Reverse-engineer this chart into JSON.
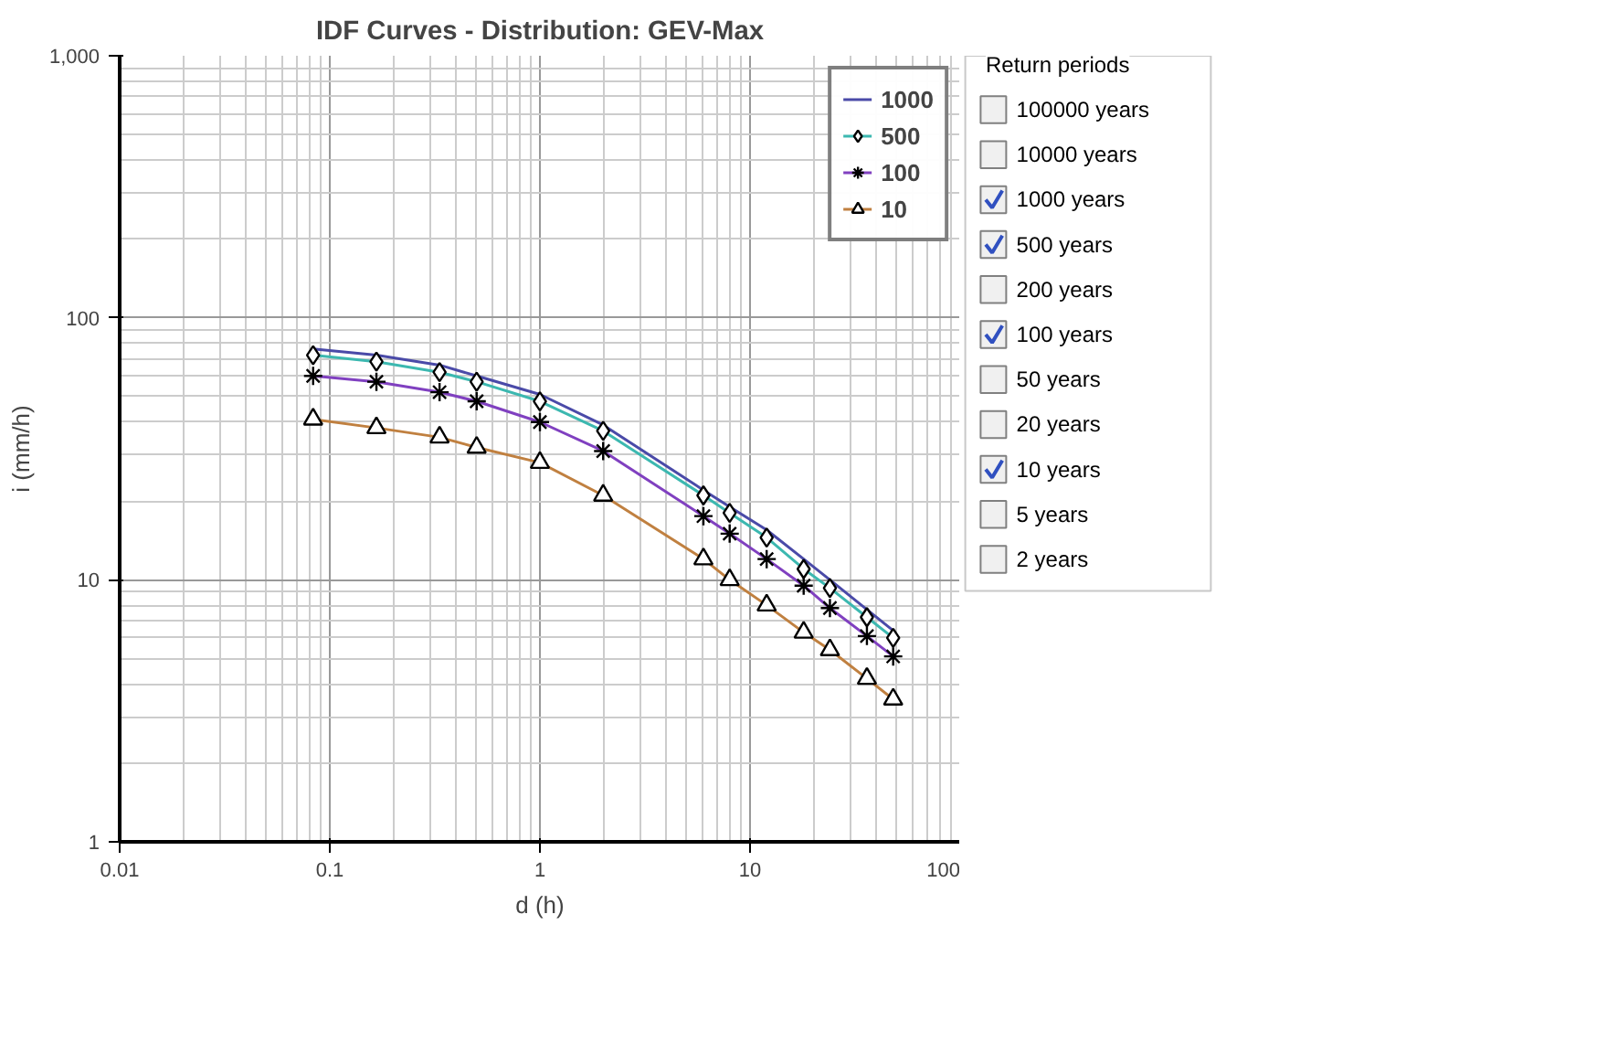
{
  "chart_data": [
    {
      "type": "line",
      "title": "IDF Curves - Distribution: GEV-Max",
      "xlabel": "d (h)",
      "ylabel": "i (mm/h)",
      "log": "xy",
      "grid": true,
      "legend": "top right",
      "xlim": [
        0.01,
        100
      ],
      "ylim": [
        1,
        1000
      ],
      "xticks": [
        0.01,
        0.1,
        1,
        10,
        100
      ],
      "yticks": [
        1,
        10,
        100,
        {
          "value": 1000,
          "label": "1,000"
        }
      ],
      "x": [
        0.0833,
        0.1667,
        0.333,
        0.5,
        1,
        2,
        6,
        8,
        12,
        18,
        24,
        36,
        48
      ],
      "series": [
        {
          "name": "1000",
          "color": "#4a4aa8",
          "marker": "none",
          "values": [
            76,
            72,
            66,
            60,
            51,
            39,
            22,
            19,
            15.5,
            12,
            10,
            7.7,
            6.4
          ]
        },
        {
          "name": "500",
          "color": "#3cb8b0",
          "marker": "diamond",
          "values": [
            72,
            68,
            62,
            57,
            48,
            37,
            21,
            18,
            14.5,
            11,
            9.3,
            7.2,
            6.0
          ]
        },
        {
          "name": "100",
          "color": "#8040c0",
          "marker": "cross",
          "values": [
            60,
            57,
            52,
            48,
            40,
            31,
            17.5,
            15,
            12,
            9.5,
            7.8,
            6.1,
            5.1
          ]
        },
        {
          "name": "10",
          "color": "#c08040",
          "marker": "triangle",
          "values": [
            41,
            38,
            35,
            32,
            28,
            21,
            12,
            10,
            8,
            6.3,
            5.4,
            4.2,
            3.5
          ]
        }
      ]
    },
    {
      "type": "other",
      "title": "Return periods",
      "categories": [
        "100000 years",
        "10000 years",
        "1000 years",
        "500 years",
        "200 years",
        "100 years",
        "50 years",
        "20 years",
        "10 years",
        "5 years",
        "2 years"
      ],
      "values": [
        false,
        false,
        true,
        true,
        false,
        true,
        false,
        false,
        true,
        false,
        false
      ]
    }
  ]
}
